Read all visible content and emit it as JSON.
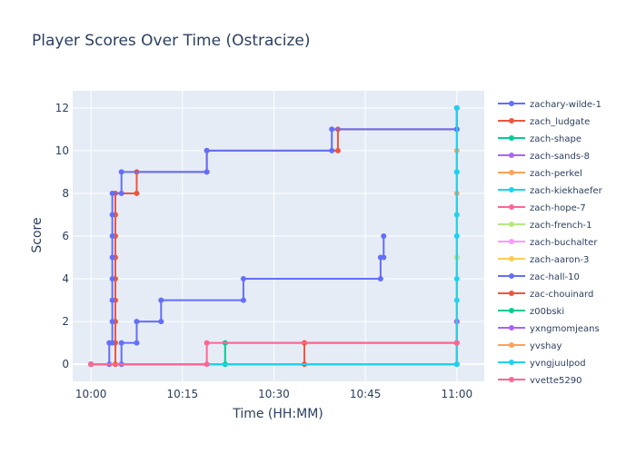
{
  "chart_data": {
    "type": "line",
    "line_shape": "step",
    "title": "Player Scores Over Time (Ostracize)",
    "xlabel": "Time (HH:MM)",
    "ylabel": "Score",
    "x_ticks": [
      "10:00",
      "10:15",
      "10:30",
      "10:45",
      "11:00"
    ],
    "y_ticks": [
      0,
      2,
      4,
      6,
      8,
      10,
      12
    ],
    "xlim": [
      "09:57:00",
      "11:04:30"
    ],
    "ylim": [
      -0.8,
      12.8
    ],
    "grid": true,
    "legend_position": "right",
    "plot_background": "#e5ecf6",
    "series": [
      {
        "name": "zachary-wilde-1",
        "color": "#636efa",
        "points": [
          [
            "10:00:00",
            0
          ],
          [
            "10:05:00",
            0
          ],
          [
            "10:05:00",
            1
          ],
          [
            "10:07:30",
            1
          ],
          [
            "10:07:30",
            2
          ],
          [
            "10:11:30",
            2
          ],
          [
            "10:11:30",
            3
          ],
          [
            "10:25:00",
            3
          ],
          [
            "10:25:00",
            4
          ],
          [
            "10:47:30",
            4
          ],
          [
            "10:47:30",
            5
          ],
          [
            "10:48:00",
            5
          ],
          [
            "10:48:00",
            6
          ]
        ]
      },
      {
        "name": "zach_ludgate",
        "color": "#ef553b",
        "points": [
          [
            "10:00:00",
            0
          ],
          [
            "10:04:00",
            0
          ],
          [
            "10:04:00",
            1
          ],
          [
            "10:04:00",
            2
          ],
          [
            "10:04:00",
            3
          ],
          [
            "10:04:00",
            4
          ],
          [
            "10:04:00",
            5
          ],
          [
            "10:04:00",
            6
          ],
          [
            "10:04:00",
            7
          ],
          [
            "10:04:00",
            8
          ],
          [
            "10:07:30",
            8
          ],
          [
            "10:07:30",
            9
          ],
          [
            "10:19:00",
            9
          ],
          [
            "10:19:00",
            10
          ],
          [
            "10:40:30",
            10
          ],
          [
            "10:40:30",
            11
          ],
          [
            "11:00:00",
            11
          ],
          [
            "11:00:00",
            12
          ]
        ]
      },
      {
        "name": "zach-shape",
        "color": "#00cc96",
        "points": [
          [
            "10:00:00",
            0
          ],
          [
            "10:22:00",
            0
          ],
          [
            "10:22:00",
            1
          ],
          [
            "11:00:00",
            1
          ],
          [
            "11:00:00",
            2
          ]
        ]
      },
      {
        "name": "zach-sands-8",
        "color": "#ab63fa",
        "points": [
          [
            "10:00:00",
            0
          ],
          [
            "11:00:00",
            0
          ],
          [
            "11:00:00",
            1
          ],
          [
            "11:00:00",
            2
          ]
        ]
      },
      {
        "name": "zach-perkel",
        "color": "#ffa15a",
        "points": [
          [
            "10:00:00",
            0
          ],
          [
            "11:00:00",
            0
          ],
          [
            "11:00:00",
            1
          ]
        ]
      },
      {
        "name": "zach-kiekhaefer",
        "color": "#19d3f3",
        "points": [
          [
            "10:00:00",
            0
          ],
          [
            "11:00:00",
            0
          ],
          [
            "11:00:00",
            3
          ],
          [
            "11:00:00",
            5
          ],
          [
            "11:00:00",
            7
          ],
          [
            "11:00:00",
            9
          ],
          [
            "11:00:00",
            11
          ]
        ]
      },
      {
        "name": "zach-hope-7",
        "color": "#ff6692",
        "points": [
          [
            "10:00:00",
            0
          ],
          [
            "11:00:00",
            0
          ],
          [
            "11:00:00",
            1
          ],
          [
            "11:00:00",
            2
          ]
        ]
      },
      {
        "name": "zach-french-1",
        "color": "#b6e880",
        "points": [
          [
            "10:00:00",
            0
          ],
          [
            "11:00:00",
            0
          ],
          [
            "11:00:00",
            5
          ]
        ]
      },
      {
        "name": "zach-buchalter",
        "color": "#ff97ff",
        "points": [
          [
            "10:00:00",
            0
          ],
          [
            "11:00:00",
            0
          ],
          [
            "11:00:00",
            1
          ]
        ]
      },
      {
        "name": "zach-aaron-3",
        "color": "#fecb52",
        "points": [
          [
            "10:00:00",
            0
          ],
          [
            "11:00:00",
            0
          ],
          [
            "11:00:00",
            1
          ]
        ]
      },
      {
        "name": "zac-hall-10",
        "color": "#636efa",
        "points": [
          [
            "10:00:00",
            0
          ],
          [
            "10:03:00",
            0
          ],
          [
            "10:03:00",
            1
          ],
          [
            "10:03:30",
            1
          ],
          [
            "10:03:30",
            2
          ],
          [
            "10:03:30",
            3
          ],
          [
            "10:03:30",
            4
          ],
          [
            "10:03:30",
            5
          ],
          [
            "10:03:30",
            6
          ],
          [
            "10:03:30",
            7
          ],
          [
            "10:03:30",
            8
          ],
          [
            "10:05:00",
            8
          ],
          [
            "10:05:00",
            9
          ],
          [
            "10:19:00",
            9
          ],
          [
            "10:19:00",
            10
          ],
          [
            "10:39:30",
            10
          ],
          [
            "10:39:30",
            11
          ],
          [
            "11:00:00",
            11
          ],
          [
            "11:00:00",
            12
          ]
        ]
      },
      {
        "name": "zac-chouinard",
        "color": "#ef553b",
        "points": [
          [
            "10:00:00",
            0
          ],
          [
            "10:35:00",
            0
          ],
          [
            "10:35:00",
            1
          ],
          [
            "11:00:00",
            1
          ]
        ]
      },
      {
        "name": "z00bski",
        "color": "#00cc96",
        "points": [
          [
            "10:00:00",
            0
          ],
          [
            "11:00:00",
            0
          ],
          [
            "11:00:00",
            1
          ]
        ]
      },
      {
        "name": "yxngmomjeans",
        "color": "#ab63fa",
        "points": [
          [
            "10:00:00",
            0
          ],
          [
            "11:00:00",
            0
          ],
          [
            "11:00:00",
            2
          ]
        ]
      },
      {
        "name": "yvshay",
        "color": "#ffa15a",
        "points": [
          [
            "10:00:00",
            0
          ],
          [
            "11:00:00",
            0
          ],
          [
            "11:00:00",
            8
          ],
          [
            "11:00:00",
            10
          ]
        ]
      },
      {
        "name": "yvngjuulpod",
        "color": "#19d3f3",
        "points": [
          [
            "10:00:00",
            0
          ],
          [
            "11:00:00",
            0
          ],
          [
            "11:00:00",
            4
          ],
          [
            "11:00:00",
            6
          ],
          [
            "11:00:00",
            9
          ],
          [
            "11:00:00",
            12
          ]
        ]
      },
      {
        "name": "yvette5290",
        "color": "#ff6692",
        "points": [
          [
            "10:00:00",
            0
          ],
          [
            "10:19:00",
            0
          ],
          [
            "10:19:00",
            1
          ],
          [
            "11:00:00",
            1
          ]
        ]
      }
    ]
  }
}
